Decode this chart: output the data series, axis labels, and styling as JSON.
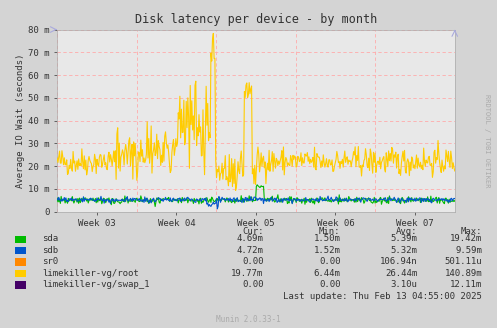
{
  "title": "Disk latency per device - by month",
  "ylabel": "Average IO Wait (seconds)",
  "bg_color": "#d4d4d4",
  "plot_bg_color": "#e8e8e8",
  "x_tick_labels": [
    "Week 03",
    "Week 04",
    "Week 05",
    "Week 06",
    "Week 07"
  ],
  "y_max": 0.08,
  "legend_items": [
    {
      "label": "sda",
      "color": "#00bb00"
    },
    {
      "label": "sdb",
      "color": "#0055cc"
    },
    {
      "label": "sr0",
      "color": "#ff8800"
    },
    {
      "label": "limekiller-vg/root",
      "color": "#ffcc00"
    },
    {
      "label": "limekiller-vg/swap_1",
      "color": "#440066"
    }
  ],
  "legend_cur": [
    "4.69m",
    "4.72m",
    "0.00",
    "19.77m",
    "0.00"
  ],
  "legend_min": [
    "1.50m",
    "1.52m",
    "0.00",
    "6.44m",
    "0.00"
  ],
  "legend_avg": [
    "5.39m",
    "5.32m",
    "106.94n",
    "26.44m",
    "3.10u"
  ],
  "legend_max": [
    "19.42m",
    "9.59m",
    "501.11u",
    "140.89m",
    "12.11m"
  ],
  "footer": "Last update: Thu Feb 13 04:55:00 2025",
  "munin_version": "Munin 2.0.33-1",
  "rrdtool_label": "RRDTOOL / TOBI OETIKER",
  "num_points": 500,
  "seed": 42
}
